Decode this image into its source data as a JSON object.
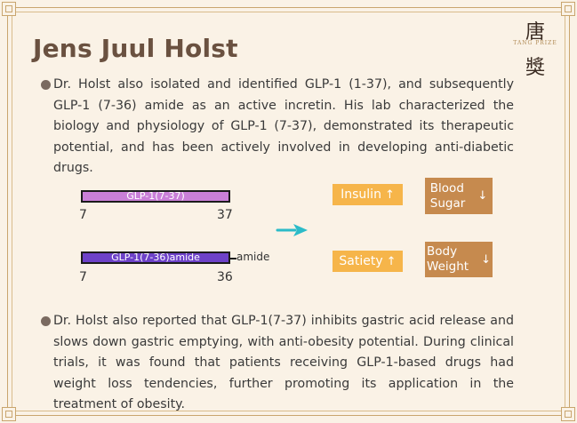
{
  "title": "Jens Juul Holst",
  "logo": {
    "top_char": "唐",
    "sub": "TANG PRIZE",
    "bottom_char": "獎"
  },
  "paragraphs": [
    "Dr. Holst also isolated and identified GLP-1 (1-37), and subsequently GLP-1 (7-36) amide as an active incretin. His lab characterized the biology and physiology of GLP-1 (7-37), demonstrated its therapeutic potential, and has been actively involved in developing anti-diabetic drugs.",
    "Dr. Holst also reported that GLP-1(7-37) inhibits gastric acid release and slows down gastric emptying, with anti-obesity potential. During clinical trials, it was found that patients receiving GLP-1-based drugs had weight loss tendencies, further promoting its application in the treatment of obesity."
  ],
  "diagram": {
    "peptide1": {
      "label": "GLP-1(7-37)",
      "start": "7",
      "end": "37",
      "color": "#c97fd8"
    },
    "peptide2": {
      "label": "GLP-1(7-36)amide",
      "start": "7",
      "end": "36",
      "tail": "amide",
      "color": "#6d42c8"
    },
    "arrow_color": "#2bbbc8",
    "effects": {
      "insulin": "Insulin",
      "insulin_arrow": "↑",
      "blood_sugar_line1": "Blood",
      "blood_sugar_line2": "Sugar",
      "blood_sugar_arrow": "↓",
      "satiety": "Satiety",
      "satiety_arrow": "↑",
      "body_weight_line1": "Body",
      "body_weight_line2": "Weight",
      "body_weight_arrow": "↓"
    }
  },
  "colors": {
    "background": "#faf2e6",
    "frame": "#c9a56e",
    "title": "#6a5140",
    "chip_light": "#f6b54a",
    "chip_dark": "#c68a4e"
  }
}
